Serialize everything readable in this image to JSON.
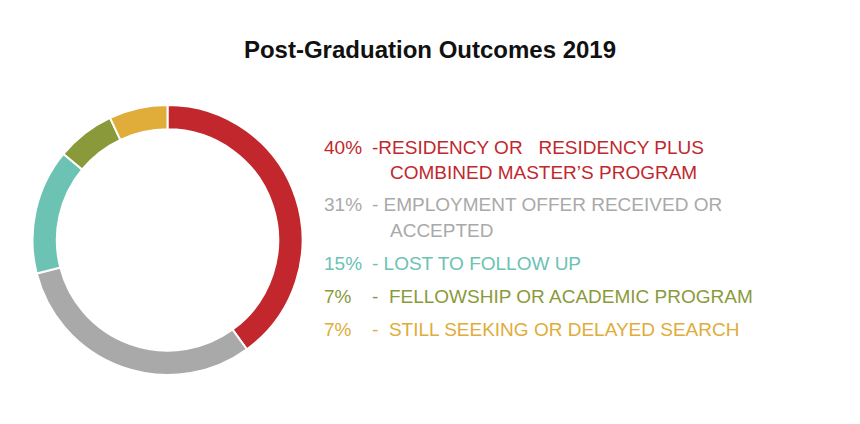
{
  "chart_data": {
    "type": "pie",
    "title": "Post-Graduation Outcomes 2019",
    "categories": [
      "-RESIDENCY OR   RESIDENCY PLUS COMBINED MASTER’S PROGRAM",
      "- EMPLOYMENT OFFER RECEIVED OR ACCEPTED",
      "- LOST TO FOLLOW UP",
      "-  FELLOWSHIP OR ACADEMIC PROGRAM",
      "-  STILL SEEKING OR DELAYED SEARCH"
    ],
    "values": [
      40,
      31,
      15,
      7,
      7
    ],
    "value_labels": [
      "40%",
      "31%",
      "15%",
      "7%",
      "7%"
    ],
    "colors": [
      "#c1272d",
      "#a9a9a9",
      "#6cc2b3",
      "#8a9a3b",
      "#e0ac3a"
    ]
  }
}
